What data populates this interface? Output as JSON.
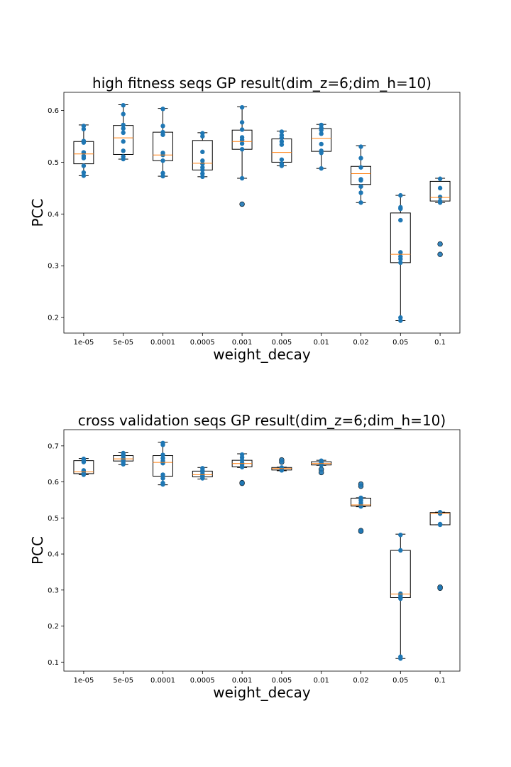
{
  "chart_data": [
    {
      "type": "box",
      "title": "high fitness seqs GP result(dim_z=6;dim_h=10)",
      "xlabel": "weight_decay",
      "ylabel": "PCC",
      "categories": [
        "1e-05",
        "5e-05",
        "0.0001",
        "0.0005",
        "0.001",
        "0.005",
        "0.01",
        "0.02",
        "0.05",
        "0.1"
      ],
      "ylim": [
        0.17,
        0.635
      ],
      "yticks": [
        "0.2",
        "0.3",
        "0.4",
        "0.5",
        "0.6"
      ],
      "grid": false,
      "boxes": [
        {
          "whislo": 0.474,
          "q1": 0.497,
          "med": 0.516,
          "q3": 0.54,
          "whishi": 0.572,
          "fliers": [],
          "points": [
            0.474,
            0.48,
            0.493,
            0.508,
            0.512,
            0.519,
            0.538,
            0.541,
            0.564,
            0.57
          ]
        },
        {
          "whislo": 0.506,
          "q1": 0.515,
          "med": 0.547,
          "q3": 0.571,
          "whishi": 0.611,
          "fliers": [],
          "points": [
            0.506,
            0.511,
            0.522,
            0.54,
            0.557,
            0.565,
            0.572,
            0.593,
            0.61
          ]
        },
        {
          "whislo": 0.473,
          "q1": 0.503,
          "med": 0.514,
          "q3": 0.558,
          "whishi": 0.604,
          "fliers": [],
          "points": [
            0.473,
            0.479,
            0.503,
            0.514,
            0.518,
            0.553,
            0.558,
            0.57,
            0.603
          ]
        },
        {
          "whislo": 0.472,
          "q1": 0.485,
          "med": 0.498,
          "q3": 0.542,
          "whishi": 0.557,
          "fliers": [],
          "points": [
            0.472,
            0.478,
            0.485,
            0.49,
            0.497,
            0.503,
            0.52,
            0.55,
            0.556
          ]
        },
        {
          "whislo": 0.469,
          "q1": 0.525,
          "med": 0.54,
          "q3": 0.562,
          "whishi": 0.607,
          "fliers": [
            0.419
          ],
          "points": [
            0.469,
            0.525,
            0.536,
            0.543,
            0.548,
            0.563,
            0.577,
            0.606
          ]
        },
        {
          "whislo": 0.493,
          "q1": 0.5,
          "med": 0.519,
          "q3": 0.545,
          "whishi": 0.56,
          "fliers": [],
          "points": [
            0.493,
            0.497,
            0.505,
            0.534,
            0.54,
            0.547,
            0.552,
            0.559
          ]
        },
        {
          "whislo": 0.488,
          "q1": 0.521,
          "med": 0.546,
          "q3": 0.565,
          "whishi": 0.573,
          "fliers": [],
          "points": [
            0.488,
            0.518,
            0.522,
            0.535,
            0.555,
            0.562,
            0.566,
            0.572
          ]
        },
        {
          "whislo": 0.422,
          "q1": 0.457,
          "med": 0.478,
          "q3": 0.492,
          "whishi": 0.532,
          "fliers": [],
          "points": [
            0.422,
            0.441,
            0.453,
            0.465,
            0.467,
            0.49,
            0.508,
            0.53
          ]
        },
        {
          "whislo": 0.194,
          "q1": 0.306,
          "med": 0.322,
          "q3": 0.402,
          "whishi": 0.436,
          "fliers": [],
          "points": [
            0.194,
            0.2,
            0.306,
            0.313,
            0.318,
            0.326,
            0.388,
            0.41,
            0.413,
            0.436
          ]
        },
        {
          "whislo": 0.422,
          "q1": 0.425,
          "med": 0.432,
          "q3": 0.463,
          "whishi": 0.469,
          "fliers": [
            0.342,
            0.322
          ],
          "points": [
            0.422,
            0.425,
            0.433,
            0.45,
            0.468
          ]
        }
      ]
    },
    {
      "type": "box",
      "title": "cross validation seqs GP result(dim_z=6;dim_h=10)",
      "xlabel": "weight_decay",
      "ylabel": "PCC",
      "categories": [
        "1e-05",
        "5e-05",
        "0.0001",
        "0.0005",
        "0.001",
        "0.005",
        "0.01",
        "0.02",
        "0.05",
        "0.1"
      ],
      "ylim": [
        0.075,
        0.745
      ],
      "yticks": [
        "0.1",
        "0.2",
        "0.3",
        "0.4",
        "0.5",
        "0.6",
        "0.7"
      ],
      "grid": false,
      "boxes": [
        {
          "whislo": 0.62,
          "q1": 0.623,
          "med": 0.628,
          "q3": 0.659,
          "whishi": 0.665,
          "fliers": [],
          "points": [
            0.62,
            0.624,
            0.63,
            0.632,
            0.655,
            0.66,
            0.664
          ]
        },
        {
          "whislo": 0.648,
          "q1": 0.658,
          "med": 0.664,
          "q3": 0.673,
          "whishi": 0.681,
          "fliers": [],
          "points": [
            0.649,
            0.653,
            0.66,
            0.663,
            0.667,
            0.673,
            0.676,
            0.68
          ]
        },
        {
          "whislo": 0.592,
          "q1": 0.616,
          "med": 0.654,
          "q3": 0.673,
          "whishi": 0.71,
          "fliers": [],
          "points": [
            0.593,
            0.597,
            0.61,
            0.62,
            0.652,
            0.658,
            0.666,
            0.675,
            0.703,
            0.708
          ]
        },
        {
          "whislo": 0.608,
          "q1": 0.614,
          "med": 0.62,
          "q3": 0.63,
          "whishi": 0.64,
          "fliers": [],
          "points": [
            0.61,
            0.615,
            0.619,
            0.622,
            0.628,
            0.632,
            0.638
          ]
        },
        {
          "whislo": 0.64,
          "q1": 0.642,
          "med": 0.651,
          "q3": 0.66,
          "whishi": 0.678,
          "fliers": [
            0.598,
            0.596
          ],
          "points": [
            0.641,
            0.647,
            0.652,
            0.66,
            0.668,
            0.676
          ]
        },
        {
          "whislo": 0.631,
          "q1": 0.633,
          "med": 0.637,
          "q3": 0.64,
          "whishi": 0.641,
          "fliers": [
            0.661,
            0.655
          ],
          "points": [
            0.632,
            0.634,
            0.637,
            0.639,
            0.64
          ]
        },
        {
          "whislo": 0.646,
          "q1": 0.647,
          "med": 0.651,
          "q3": 0.656,
          "whishi": 0.66,
          "fliers": [
            0.635,
            0.626
          ],
          "points": [
            0.647,
            0.649,
            0.651,
            0.653,
            0.656,
            0.659
          ]
        },
        {
          "whislo": 0.531,
          "q1": 0.533,
          "med": 0.536,
          "q3": 0.555,
          "whishi": 0.556,
          "fliers": [
            0.594,
            0.588,
            0.465,
            0.463
          ],
          "points": [
            0.532,
            0.535,
            0.541,
            0.548,
            0.553,
            0.556
          ]
        },
        {
          "whislo": 0.11,
          "q1": 0.279,
          "med": 0.289,
          "q3": 0.41,
          "whishi": 0.455,
          "fliers": [],
          "points": [
            0.11,
            0.115,
            0.276,
            0.28,
            0.286,
            0.29,
            0.41,
            0.453
          ]
        },
        {
          "whislo": 0.481,
          "q1": 0.481,
          "med": 0.513,
          "q3": 0.515,
          "whishi": 0.516,
          "fliers": [
            0.308,
            0.305
          ],
          "points": [
            0.481,
            0.483,
            0.512,
            0.514,
            0.516
          ]
        }
      ]
    }
  ]
}
